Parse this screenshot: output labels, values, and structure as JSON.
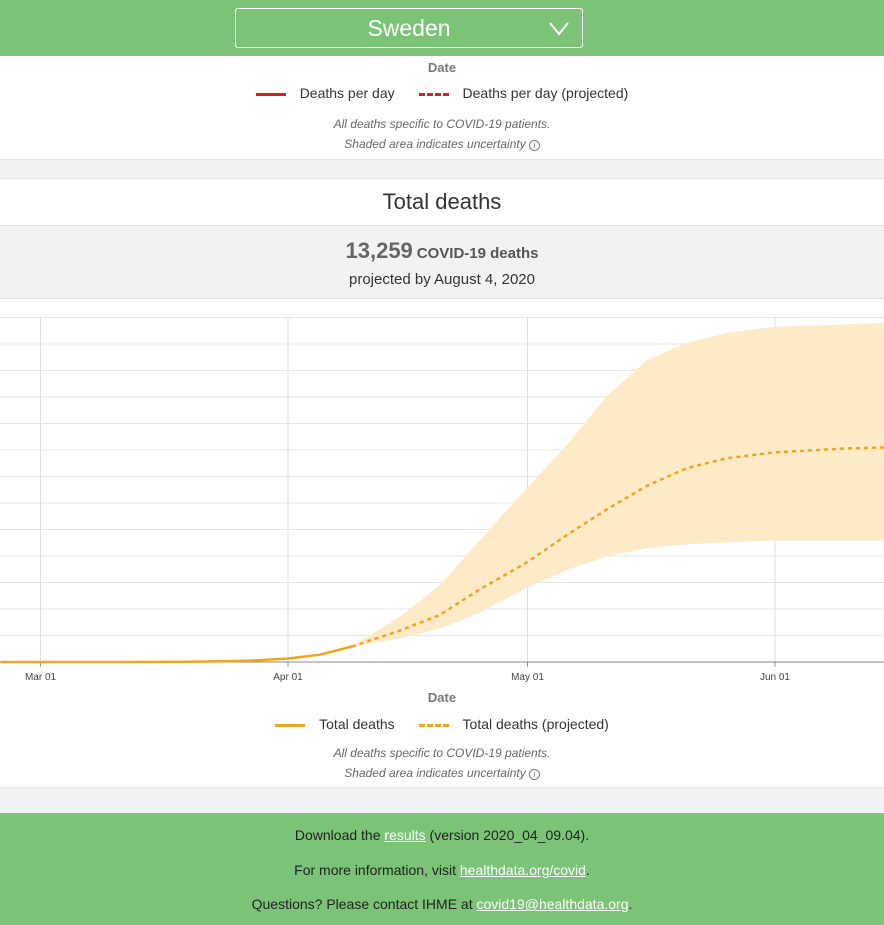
{
  "header": {
    "country": "Sweden"
  },
  "daily_card": {
    "axis_title": "Date",
    "legend": [
      {
        "label": "Deaths per day",
        "color": "#e31a1c",
        "style": "solid"
      },
      {
        "label": "Deaths per day (projected)",
        "color": "#e31a1c",
        "style": "dashed"
      }
    ],
    "note1": "All deaths specific to COVID-19 patients.",
    "note2": "Shaded area indicates uncertainty"
  },
  "total_card": {
    "title": "Total deaths",
    "summary_number": "13,259",
    "summary_unit": "COVID-19 deaths",
    "summary_sub": "projected by August 4, 2020",
    "axis_title": "Date",
    "legend": [
      {
        "label": "Total deaths",
        "color": "#f2a51a",
        "style": "solid"
      },
      {
        "label": "Total deaths (projected)",
        "color": "#f2a51a",
        "style": "dashed"
      }
    ],
    "note1": "All deaths specific to COVID-19 patients.",
    "note2": "Shaded area indicates uncertainty"
  },
  "chart_data": {
    "type": "area",
    "title": "Total deaths",
    "xlabel": "Date",
    "ylabel": "",
    "x_ticks": [
      "Mar 01",
      "Apr 01",
      "May 01",
      "Jun 01"
    ],
    "colors": {
      "line": "#f2a51a",
      "band": "#fdebc8"
    },
    "series": [
      {
        "name": "Total deaths",
        "style": "solid",
        "points": [
          [
            "2020-02-25",
            0
          ],
          [
            "2020-03-10",
            0
          ],
          [
            "2020-03-20",
            10
          ],
          [
            "2020-03-27",
            60
          ],
          [
            "2020-04-01",
            180
          ],
          [
            "2020-04-05",
            370
          ],
          [
            "2020-04-09",
            790
          ]
        ]
      },
      {
        "name": "Total deaths (projected)",
        "style": "dashed",
        "points": [
          [
            "2020-04-09",
            790
          ],
          [
            "2020-04-15",
            1600
          ],
          [
            "2020-04-20",
            2400
          ],
          [
            "2020-04-25",
            3700
          ],
          [
            "2020-05-01",
            5100
          ],
          [
            "2020-05-06",
            6500
          ],
          [
            "2020-05-11",
            7800
          ],
          [
            "2020-05-16",
            9000
          ],
          [
            "2020-05-21",
            9900
          ],
          [
            "2020-05-26",
            10400
          ],
          [
            "2020-06-01",
            10700
          ],
          [
            "2020-06-10",
            10900
          ],
          [
            "2020-06-15",
            10950
          ]
        ]
      }
    ],
    "uncertainty": [
      [
        "2020-04-09",
        790,
        790
      ],
      [
        "2020-04-15",
        1200,
        2300
      ],
      [
        "2020-04-20",
        1700,
        3900
      ],
      [
        "2020-04-25",
        2500,
        6200
      ],
      [
        "2020-05-01",
        3800,
        8900
      ],
      [
        "2020-05-06",
        4700,
        11100
      ],
      [
        "2020-05-11",
        5400,
        13600
      ],
      [
        "2020-05-16",
        5800,
        15400
      ],
      [
        "2020-05-21",
        6000,
        16300
      ],
      [
        "2020-05-26",
        6100,
        16800
      ],
      [
        "2020-06-01",
        6200,
        17100
      ],
      [
        "2020-06-15",
        6200,
        17300
      ]
    ],
    "ylim": [
      0,
      17500
    ],
    "grid": true
  },
  "footer": {
    "line1_pre": "Download the ",
    "line1_link": "results",
    "line1_post": " (version 2020_04_09.04).",
    "line2_pre": "For more information, visit ",
    "line2_link": "healthdata.org/covid",
    "line2_post": ".",
    "line3_pre": "Questions? Please contact IHME at ",
    "line3_link": "covid19@healthdata.org",
    "line3_post": "."
  }
}
